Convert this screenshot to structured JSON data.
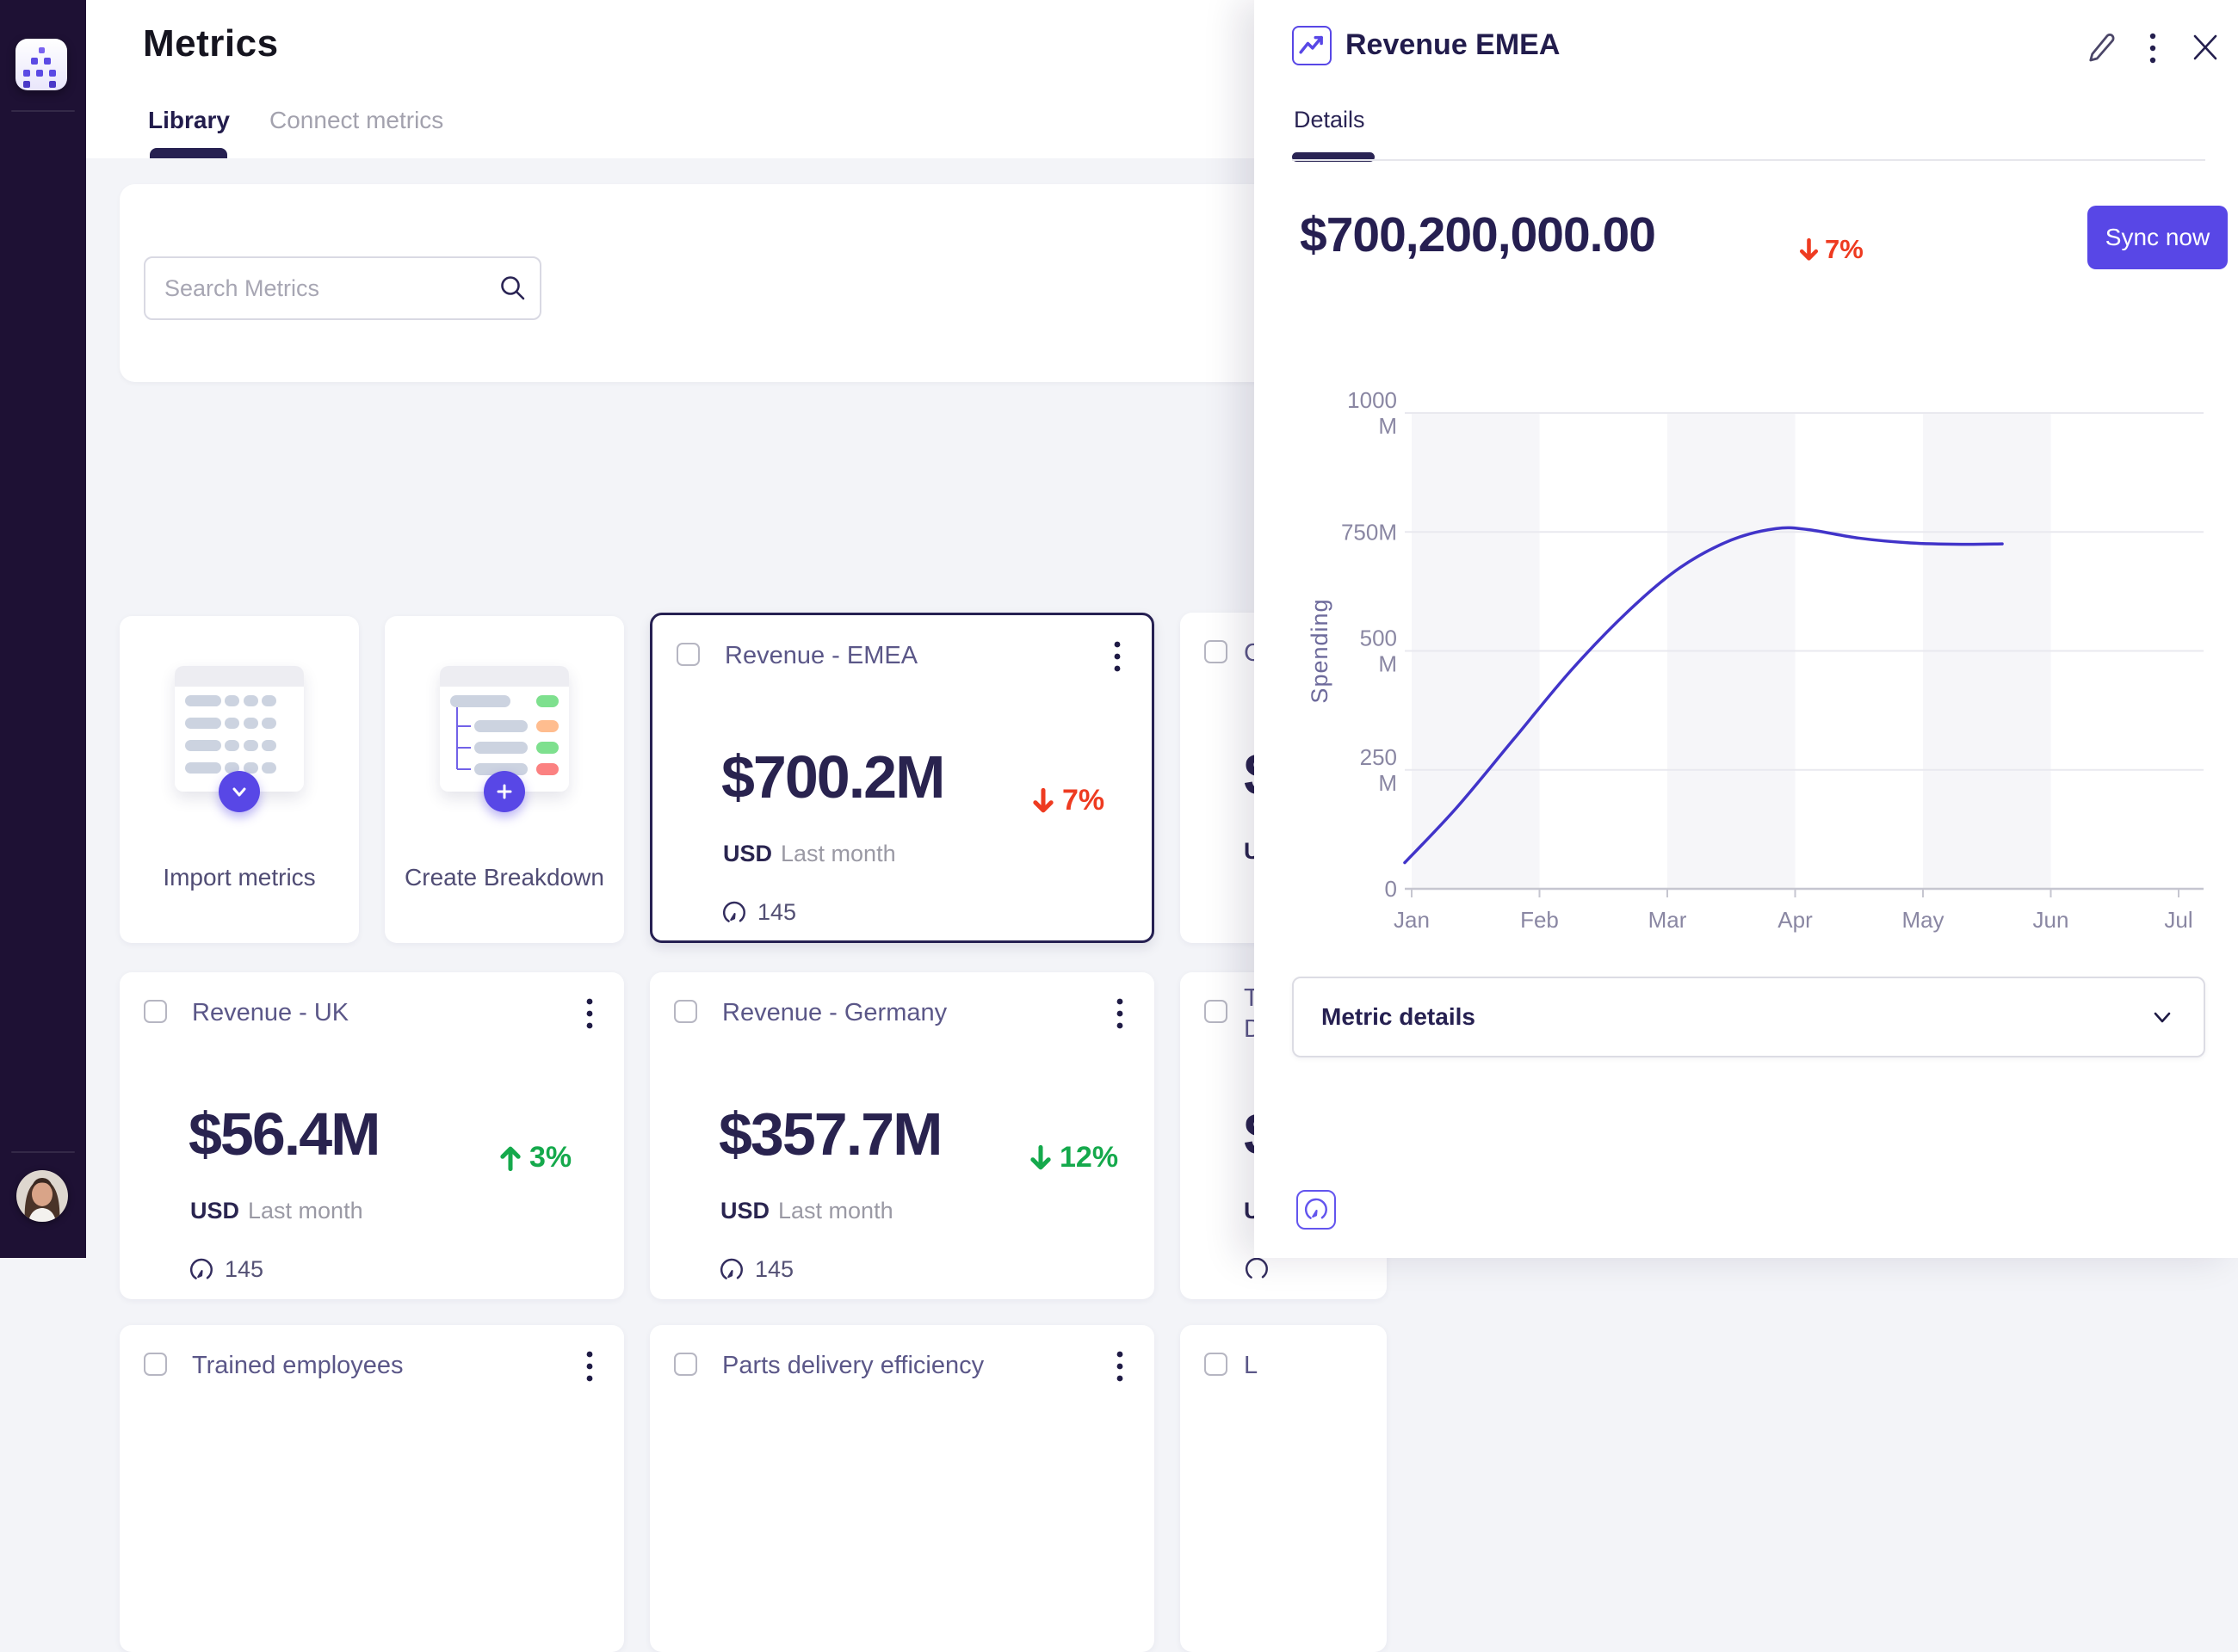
{
  "colors": {
    "accent": "#5847e6",
    "navy": "#261f51",
    "negative": "#ee3b21",
    "positive": "#15a94c",
    "line": "#4134c9",
    "sidebar_bg": "#1e1134"
  },
  "header": {
    "title": "Metrics",
    "tabs": [
      {
        "label": "Library"
      },
      {
        "label": "Connect metrics"
      }
    ]
  },
  "search": {
    "placeholder": "Search Metrics"
  },
  "actions": {
    "import_label": "Import metrics",
    "breakdown_label": "Create Breakdown"
  },
  "cards": [
    {
      "title": "Revenue - EMEA",
      "value": "$700.2M",
      "delta": "7%",
      "delta_dir": "down",
      "delta_tone": "negative",
      "unit": "USD",
      "period": "Last month",
      "count": "145",
      "selected": true
    },
    {
      "title": "Revenue - UK",
      "value": "$56.4M",
      "delta": "3%",
      "delta_dir": "up",
      "delta_tone": "positive",
      "unit": "USD",
      "period": "Last month",
      "count": "145",
      "selected": false
    },
    {
      "title": "Revenue - Germany",
      "value": "$357.7M",
      "delta": "12%",
      "delta_dir": "down",
      "delta_tone": "positive",
      "unit": "USD",
      "period": "Last month",
      "count": "145",
      "selected": false
    },
    {
      "title": "Trained employees",
      "selected": false
    },
    {
      "title": "Parts delivery efficiency",
      "selected": false
    }
  ],
  "partial_cards": [
    {
      "title_lines": [
        "C"
      ],
      "value_fragment": "$",
      "unit_fragment": "U"
    },
    {
      "title_lines": [
        "T",
        "D"
      ],
      "value_fragment": "$",
      "unit_fragment": "U"
    },
    {
      "title_lines": [
        "L"
      ]
    }
  ],
  "panel": {
    "title": "Revenue EMEA",
    "tab": "Details",
    "value": "$700,200,000.00",
    "delta": "7%",
    "delta_dir": "down",
    "delta_tone": "negative",
    "sync_label": "Sync now",
    "accordion_label": "Metric details"
  },
  "chart_data": {
    "type": "line",
    "title": "",
    "xlabel": "",
    "ylabel": "Spending",
    "unit": "M",
    "ylim": [
      0,
      1000
    ],
    "x_ticks": [
      "Jan",
      "Feb",
      "Mar",
      "Apr",
      "May",
      "Jun",
      "Jul"
    ],
    "y_ticks": [
      {
        "v": 1000,
        "lines": [
          "1000",
          "M"
        ]
      },
      {
        "v": 750,
        "lines": [
          "750M"
        ]
      },
      {
        "v": 500,
        "lines": [
          "500",
          "M"
        ]
      },
      {
        "v": 250,
        "lines": [
          "250",
          "M"
        ]
      },
      {
        "v": 0,
        "lines": [
          "0"
        ]
      }
    ],
    "grid_values": [
      250,
      500,
      750,
      1000
    ],
    "bands": [
      [
        0,
        1
      ],
      [
        2,
        3
      ],
      [
        4,
        5
      ]
    ],
    "grid": true,
    "legend_position": "none",
    "series": [
      {
        "name": "Spending",
        "color": "#4134c9",
        "points": [
          [
            -0.054,
            55
          ],
          [
            0.35,
            170
          ],
          [
            0.8,
            315
          ],
          [
            1.25,
            460
          ],
          [
            1.7,
            585
          ],
          [
            2.1,
            675
          ],
          [
            2.5,
            733
          ],
          [
            2.85,
            757
          ],
          [
            3.1,
            755
          ],
          [
            3.5,
            737
          ],
          [
            3.9,
            727
          ],
          [
            4.3,
            724
          ],
          [
            4.62,
            725
          ]
        ]
      }
    ]
  }
}
